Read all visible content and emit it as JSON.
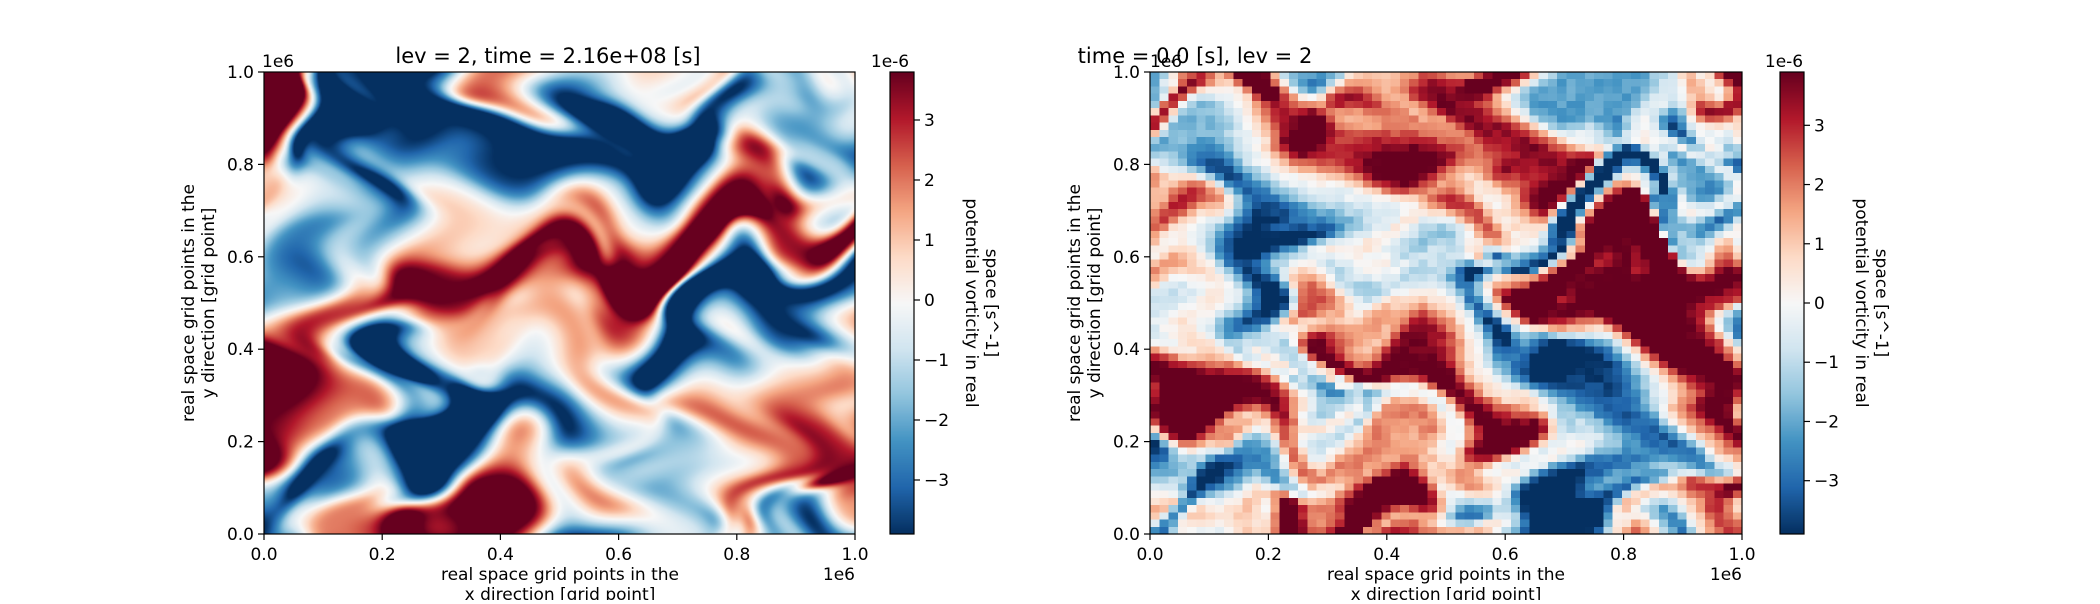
{
  "chart_data": [
    {
      "type": "heatmap",
      "title": "lev = 2, time = 2.16e+08 [s]",
      "xlabel": "real space grid points in the x direction [grid point]",
      "ylabel": "real space grid points in the y direction [grid point]",
      "xlabel_lines": [
        "real space grid points in the",
        "x direction [grid point]"
      ],
      "ylabel_lines": [
        "real space grid points in the",
        "y direction [grid point]"
      ],
      "xlim": [
        0.0,
        1.0
      ],
      "ylim": [
        0.0,
        1.0
      ],
      "x_offset": "1e6",
      "y_offset": "1e6",
      "xticks": [
        "0.0",
        "0.2",
        "0.4",
        "0.6",
        "0.8",
        "1.0"
      ],
      "yticks": [
        "0.0",
        "0.2",
        "0.4",
        "0.6",
        "0.8",
        "1.0"
      ],
      "colormap": "RdBu_r",
      "colorbar": {
        "label_lines": [
          "potential vorticity in real",
          "space [s^-1]"
        ],
        "offset": "1e-6",
        "range": [
          -3.9,
          3.8
        ],
        "ticks": [
          -3,
          -2,
          -1,
          0,
          1,
          2,
          3
        ],
        "tick_labels": [
          "−3",
          "−2",
          "−1",
          "0",
          "1",
          "2",
          "3"
        ]
      },
      "field_description": "smooth high-resolution turbulent vorticity field",
      "grid_resolution": "high"
    },
    {
      "type": "heatmap",
      "title": "time = 0.0 [s], lev = 2",
      "xlabel": "real space grid points in the x direction [grid point]",
      "ylabel": "real space grid points in the y direction [grid point]",
      "xlabel_lines": [
        "real space grid points in the",
        "x direction [grid point]"
      ],
      "ylabel_lines": [
        "real space grid points in the",
        "y direction [grid point]"
      ],
      "xlim": [
        0.0,
        1.0
      ],
      "ylim": [
        0.0,
        1.0
      ],
      "x_offset": "1e6",
      "y_offset": "1e6",
      "xticks": [
        "0.0",
        "0.2",
        "0.4",
        "0.6",
        "0.8",
        "1.0"
      ],
      "yticks": [
        "0.0",
        "0.2",
        "0.4",
        "0.6",
        "0.8",
        "1.0"
      ],
      "colormap": "RdBu_r",
      "colorbar": {
        "label_lines": [
          "potential vorticity in real",
          "space [s^-1]"
        ],
        "offset": "1e-6",
        "range": [
          -3.9,
          3.9
        ],
        "ticks": [
          -3,
          -2,
          -1,
          0,
          1,
          2,
          3
        ],
        "tick_labels": [
          "−3",
          "−2",
          "−1",
          "0",
          "1",
          "2",
          "3"
        ]
      },
      "field_description": "blocky low-resolution vorticity field (64x64 cells)",
      "grid_resolution": "low"
    }
  ]
}
